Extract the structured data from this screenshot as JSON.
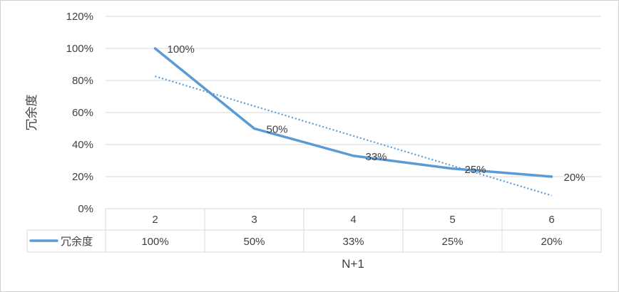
{
  "chart_data": {
    "type": "line",
    "x": [
      "2",
      "3",
      "4",
      "5",
      "6"
    ],
    "series": [
      {
        "name": "冗余度",
        "values": [
          100,
          50,
          33,
          25,
          20
        ],
        "value_labels": [
          "100%",
          "50%",
          "33%",
          "25%",
          "20%"
        ],
        "color": "#5B9BD5"
      }
    ],
    "trendline": {
      "type": "linear",
      "style": "dotted",
      "color": "#5B9BD5",
      "values": [
        82.6,
        64.0,
        45.4,
        26.8,
        8.2
      ]
    },
    "ylabel": "冗余度",
    "xlabel": "N+1",
    "ylim": [
      0,
      120
    ],
    "yticks": [
      "0%",
      "20%",
      "40%",
      "60%",
      "80%",
      "100%",
      "120%"
    ],
    "grid": true,
    "legend": "data-table"
  }
}
